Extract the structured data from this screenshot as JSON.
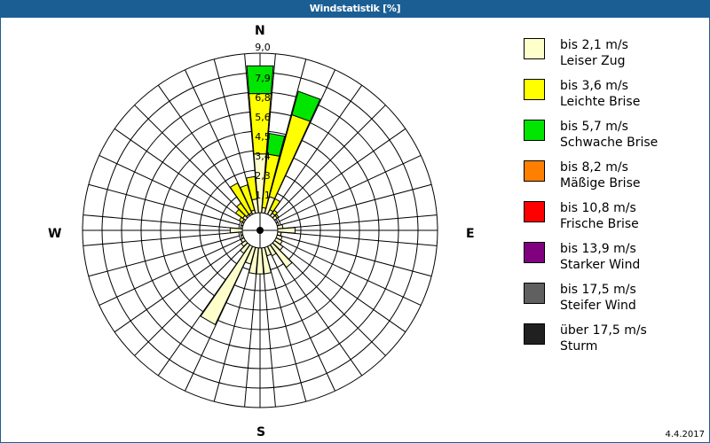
{
  "window": {
    "title": "Windstatistik [%]"
  },
  "compass": {
    "north": "N",
    "south": "S",
    "west": "W",
    "east": "E"
  },
  "footer": {
    "date": "4.4.2017"
  },
  "legend": [
    {
      "range": "bis 2,1 m/s",
      "name": "Leiser Zug",
      "color": "#ffffcc"
    },
    {
      "range": "bis 3,6 m/s",
      "name": "Leichte Brise",
      "color": "#ffff00"
    },
    {
      "range": "bis 5,7 m/s",
      "name": "Schwache Brise",
      "color": "#00e600"
    },
    {
      "range": "bis 8,2 m/s",
      "name": "Mäßige Brise",
      "color": "#ff8000"
    },
    {
      "range": "bis 10,8 m/s",
      "name": "Frische Brise",
      "color": "#ff0000"
    },
    {
      "range": "bis 13,9 m/s",
      "name": "Starker Wind",
      "color": "#800080"
    },
    {
      "range": "bis 17,5 m/s",
      "name": "Steifer Wind",
      "color": "#606060"
    },
    {
      "range": "über 17,5 m/s",
      "name": "Sturm",
      "color": "#202020"
    }
  ],
  "chart_data": {
    "type": "wind-rose",
    "title": "Windstatistik [%]",
    "unit": "%",
    "ring_labels": [
      "1,1",
      "2,3",
      "3,4",
      "4,5",
      "5,6",
      "6,8",
      "7,9",
      "9,0"
    ],
    "rmax": 9.0,
    "directions_deg": [
      0,
      10,
      20,
      30,
      40,
      50,
      60,
      70,
      80,
      90,
      100,
      110,
      120,
      130,
      140,
      150,
      160,
      170,
      180,
      190,
      200,
      210,
      220,
      230,
      240,
      250,
      260,
      270,
      280,
      290,
      300,
      310,
      320,
      330,
      340,
      350
    ],
    "series": [
      {
        "name": "bis 2,1 m/s",
        "values": [
          3.4,
          0.3,
          1.0,
          0.3,
          0.2,
          0.2,
          0.1,
          0.1,
          0.3,
          1.0,
          0.2,
          0.3,
          0.4,
          0.6,
          1.6,
          0.6,
          0.5,
          1.5,
          1.5,
          1.5,
          1.0,
          5.0,
          0.6,
          0.3,
          0.2,
          0.1,
          0.1,
          0.7,
          0.1,
          0.1,
          0.1,
          0.2,
          0.1,
          0.1,
          0.2,
          0.8
        ]
      },
      {
        "name": "bis 3,6 m/s",
        "values": [
          3.5,
          3.1,
          4.9,
          0.7,
          0.2,
          0.1,
          0.0,
          0.0,
          0.0,
          0.0,
          0.0,
          0.0,
          0.0,
          0.0,
          0.0,
          0.0,
          0.0,
          0.0,
          0.0,
          0.0,
          0.0,
          0.0,
          0.0,
          0.0,
          0.0,
          0.0,
          0.0,
          0.0,
          0.0,
          0.0,
          0.2,
          0.5,
          0.8,
          1.9,
          1.5,
          1.3
        ]
      },
      {
        "name": "bis 5,7 m/s",
        "values": [
          1.6,
          1.2,
          1.4,
          0,
          0,
          0,
          0,
          0,
          0,
          0,
          0,
          0,
          0,
          0,
          0,
          0,
          0,
          0,
          0,
          0,
          0,
          0,
          0,
          0,
          0,
          0,
          0,
          0,
          0,
          0,
          0,
          0,
          0,
          0,
          0,
          0
        ]
      },
      {
        "name": "bis 8,2 m/s",
        "values": []
      },
      {
        "name": "bis 10,8 m/s",
        "values": []
      },
      {
        "name": "bis 13,9 m/s",
        "values": []
      },
      {
        "name": "bis 17,5 m/s",
        "values": []
      },
      {
        "name": "über 17,5 m/s",
        "values": []
      }
    ],
    "grid": {
      "rings": 8,
      "spokes": 36,
      "calm_hole": true
    }
  }
}
